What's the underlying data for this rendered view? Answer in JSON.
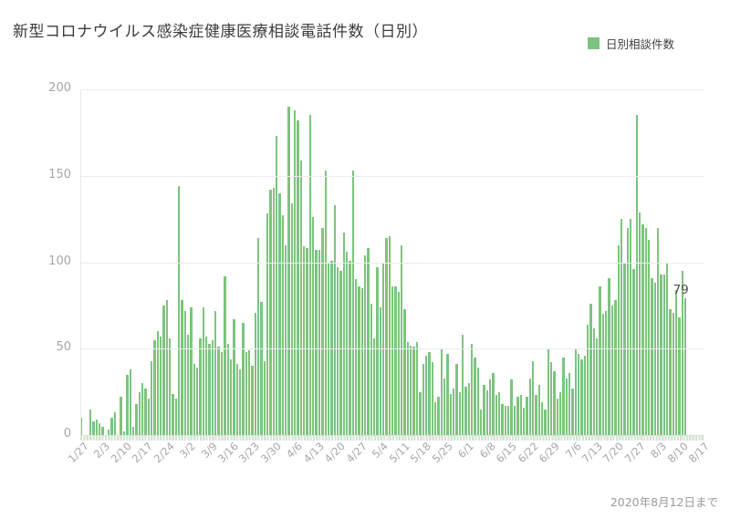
{
  "title": "新型コロナウイルス感染症健康医療相談電話件数（日別）",
  "legend": {
    "label": "日別相談件数",
    "swatch_color": "#7cc47e"
  },
  "footer": {
    "note": "2020年8月12日まで"
  },
  "annotation": {
    "label": "79"
  },
  "colors": {
    "bar": "#7cc47e",
    "gridline": "#ececec",
    "baseline": "#e0e0e0",
    "axis_text": "#a6a6a6",
    "title_text": "#3c3c3c",
    "tick_fringe": "#cfe7cf"
  },
  "chart_data": {
    "type": "bar",
    "title": "新型コロナウイルス感染症健康医療相談電話件数（日別）",
    "series_name": "日別相談件数",
    "legend_position": "top-right",
    "grid": "horizontal",
    "ylim": [
      0,
      200
    ],
    "y_ticks": [
      0,
      50,
      100,
      150,
      200
    ],
    "x_tick_labels": [
      "1/27",
      "2/3",
      "2/10",
      "2/17",
      "2/24",
      "3/2",
      "3/9",
      "3/16",
      "3/23",
      "3/30",
      "4/6",
      "4/13",
      "4/20",
      "4/27",
      "5/4",
      "5/11",
      "5/18",
      "5/25",
      "6/1",
      "6/8",
      "6/15",
      "6/22",
      "6/29",
      "7/6",
      "7/13",
      "7/20",
      "7/27",
      "8/3",
      "8/10",
      "8/17"
    ],
    "x_tick_interval_days": 7,
    "axis_slot_count": 204,
    "last_value_label": 79,
    "period_note": "2020年8月12日まで",
    "dates": [
      "1/27",
      "1/28",
      "1/29",
      "1/30",
      "1/31",
      "2/1",
      "2/2",
      "2/3",
      "2/4",
      "2/5",
      "2/6",
      "2/7",
      "2/8",
      "2/9",
      "2/10",
      "2/11",
      "2/12",
      "2/13",
      "2/14",
      "2/15",
      "2/16",
      "2/17",
      "2/18",
      "2/19",
      "2/20",
      "2/21",
      "2/22",
      "2/23",
      "2/24",
      "2/25",
      "2/26",
      "2/27",
      "2/28",
      "2/29",
      "3/1",
      "3/2",
      "3/3",
      "3/4",
      "3/5",
      "3/6",
      "3/7",
      "3/8",
      "3/9",
      "3/10",
      "3/11",
      "3/12",
      "3/13",
      "3/14",
      "3/15",
      "3/16",
      "3/17",
      "3/18",
      "3/19",
      "3/20",
      "3/21",
      "3/22",
      "3/23",
      "3/24",
      "3/25",
      "3/26",
      "3/27",
      "3/28",
      "3/29",
      "3/30",
      "3/31",
      "4/1",
      "4/2",
      "4/3",
      "4/4",
      "4/5",
      "4/6",
      "4/7",
      "4/8",
      "4/9",
      "4/10",
      "4/11",
      "4/12",
      "4/13",
      "4/14",
      "4/15",
      "4/16",
      "4/17",
      "4/18",
      "4/19",
      "4/20",
      "4/21",
      "4/22",
      "4/23",
      "4/24",
      "4/25",
      "4/26",
      "4/27",
      "4/28",
      "4/29",
      "4/30",
      "5/1",
      "5/2",
      "5/3",
      "5/4",
      "5/5",
      "5/6",
      "5/7",
      "5/8",
      "5/9",
      "5/10",
      "5/11",
      "5/12",
      "5/13",
      "5/14",
      "5/15",
      "5/16",
      "5/17",
      "5/18",
      "5/19",
      "5/20",
      "5/21",
      "5/22",
      "5/23",
      "5/24",
      "5/25",
      "5/26",
      "5/27",
      "5/28",
      "5/29",
      "5/30",
      "5/31",
      "6/1",
      "6/2",
      "6/3",
      "6/4",
      "6/5",
      "6/6",
      "6/7",
      "6/8",
      "6/9",
      "6/10",
      "6/11",
      "6/12",
      "6/13",
      "6/14",
      "6/15",
      "6/16",
      "6/17",
      "6/18",
      "6/19",
      "6/20",
      "6/21",
      "6/22",
      "6/23",
      "6/24",
      "6/25",
      "6/26",
      "6/27",
      "6/28",
      "6/29",
      "6/30",
      "7/1",
      "7/2",
      "7/3",
      "7/4",
      "7/5",
      "7/6",
      "7/7",
      "7/8",
      "7/9",
      "7/10",
      "7/11",
      "7/12",
      "7/13",
      "7/14",
      "7/15",
      "7/16",
      "7/17",
      "7/18",
      "7/19",
      "7/20",
      "7/21",
      "7/22",
      "7/23",
      "7/24",
      "7/25",
      "7/26",
      "7/27",
      "7/28",
      "7/29",
      "7/30",
      "7/31",
      "8/1",
      "8/2",
      "8/3",
      "8/4",
      "8/5",
      "8/6",
      "8/7",
      "8/8",
      "8/9",
      "8/10",
      "8/11",
      "8/12"
    ],
    "values": [
      10,
      0,
      0,
      15,
      8,
      9,
      7,
      5,
      0,
      3,
      10,
      13,
      0,
      22,
      2,
      35,
      38,
      5,
      18,
      25,
      30,
      27,
      21,
      43,
      55,
      60,
      57,
      75,
      78,
      56,
      24,
      21,
      144,
      78,
      72,
      58,
      74,
      41,
      39,
      56,
      74,
      57,
      53,
      55,
      72,
      51,
      48,
      92,
      53,
      44,
      67,
      41,
      38,
      65,
      48,
      49,
      40,
      71,
      114,
      77,
      43,
      128,
      142,
      143,
      173,
      140,
      127,
      110,
      190,
      134,
      188,
      182,
      159,
      109,
      108,
      185,
      126,
      107,
      107,
      120,
      153,
      100,
      101,
      133,
      97,
      95,
      117,
      106,
      101,
      153,
      90,
      86,
      85,
      104,
      108,
      76,
      56,
      97,
      74,
      99,
      114,
      115,
      86,
      86,
      83,
      110,
      73,
      54,
      52,
      51,
      54,
      25,
      41,
      46,
      48,
      42,
      19,
      22,
      50,
      33,
      47,
      24,
      27,
      41,
      25,
      58,
      28,
      30,
      53,
      45,
      39,
      15,
      29,
      26,
      32,
      36,
      23,
      25,
      18,
      17,
      17,
      32,
      17,
      22,
      23,
      16,
      22,
      33,
      43,
      23,
      29,
      19,
      15,
      50,
      42,
      37,
      21,
      25,
      45,
      33,
      36,
      27,
      50,
      47,
      44,
      46,
      64,
      76,
      62,
      56,
      86,
      70,
      72,
      91,
      75,
      78,
      110,
      125,
      100,
      120,
      125,
      96,
      185,
      129,
      122,
      120,
      113,
      91,
      88,
      120,
      93,
      93,
      100,
      73,
      71,
      84,
      68,
      95,
      79
    ]
  }
}
